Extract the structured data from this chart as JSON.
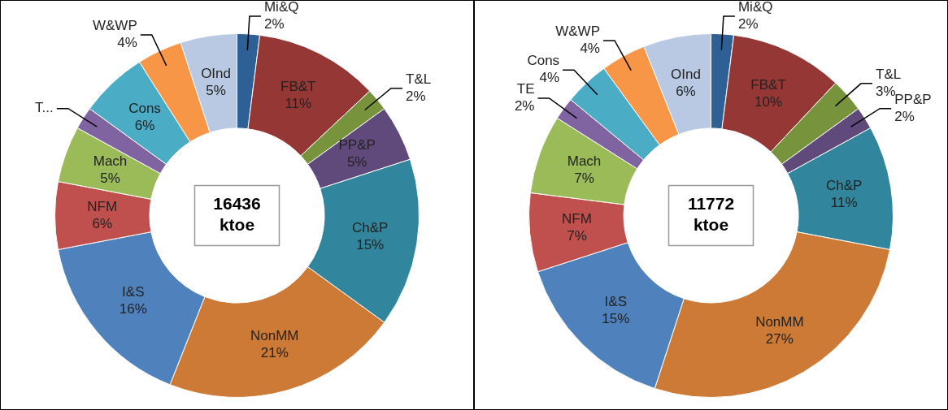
{
  "chart_data": [
    {
      "type": "donut",
      "categories": [
        "Mi&Q",
        "FB&T",
        "T&L",
        "PP&P",
        "Ch&P",
        "NonMM",
        "I&S",
        "NFM",
        "Mach",
        "T...",
        "Cons",
        "W&WP",
        "OInd"
      ],
      "values": [
        2,
        11,
        2,
        5,
        15,
        21,
        16,
        6,
        5,
        2,
        6,
        4,
        5
      ],
      "value_labels": [
        "2%",
        "11%",
        "2%",
        "5%",
        "15%",
        "21%",
        "16%",
        "6%",
        "5%",
        null,
        "6%",
        "4%",
        "5%"
      ],
      "colors": [
        "#2e5f95",
        "#953735",
        "#77933c",
        "#604a7b",
        "#31859c",
        "#cc7a35",
        "#4f81bd",
        "#c0504d",
        "#9bbb59",
        "#8064a2",
        "#4bacc6",
        "#f79646",
        "#b9c9e3"
      ],
      "annotations": [
        "16436 ktoe"
      ]
    },
    {
      "type": "donut",
      "categories": [
        "Mi&Q",
        "FB&T",
        "T&L",
        "PP&P",
        "Ch&P",
        "NonMM",
        "I&S",
        "NFM",
        "Mach",
        "TE",
        "Cons",
        "W&WP",
        "OInd"
      ],
      "values": [
        2,
        10,
        3,
        2,
        11,
        27,
        15,
        7,
        7,
        2,
        4,
        4,
        6
      ],
      "value_labels": [
        "2%",
        "10%",
        "3%",
        "2%",
        "11%",
        "27%",
        "15%",
        "7%",
        "7%",
        "2%",
        "4%",
        "4%",
        "6%"
      ],
      "colors": [
        "#2e5f95",
        "#953735",
        "#77933c",
        "#604a7b",
        "#31859c",
        "#cc7a35",
        "#4f81bd",
        "#c0504d",
        "#9bbb59",
        "#8064a2",
        "#4bacc6",
        "#f79646",
        "#b9c9e3"
      ],
      "annotations": [
        "11772 ktoe"
      ]
    }
  ]
}
